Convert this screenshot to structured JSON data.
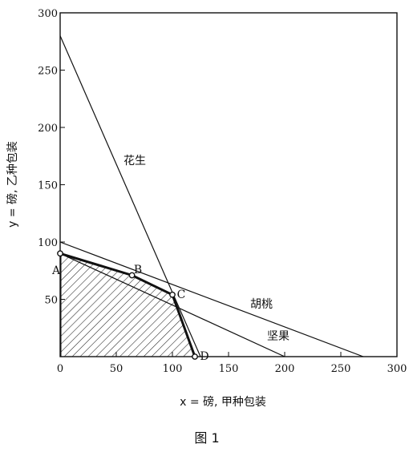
{
  "chart_data": {
    "type": "line",
    "title": "",
    "caption": "图 1",
    "xlabel": "x = 磅, 甲种包装",
    "ylabel": "y = 磅, 乙种包装",
    "xlim": [
      0,
      300
    ],
    "ylim": [
      0,
      300
    ],
    "xticks": [
      0,
      50,
      100,
      150,
      200,
      250,
      300
    ],
    "yticks": [
      50,
      100,
      150,
      200,
      250,
      300
    ],
    "grid": false,
    "series": [
      {
        "name": "花生",
        "x": [
          0,
          100
        ],
        "y": [
          280,
          56
        ],
        "extend_to": [
          125,
          0
        ]
      },
      {
        "name": "胡桃",
        "x": [
          0,
          270
        ],
        "y": [
          100,
          0
        ]
      },
      {
        "name": "坚果",
        "x": [
          0,
          200
        ],
        "y": [
          90,
          0
        ]
      }
    ],
    "feasible_region": {
      "vertices": [
        {
          "label": "A",
          "x": 0,
          "y": 90
        },
        {
          "label": "B",
          "x": 64,
          "y": 71
        },
        {
          "label": "C",
          "x": 100,
          "y": 54
        },
        {
          "label": "D",
          "x": 120,
          "y": 0
        }
      ],
      "fill": "hatched"
    }
  },
  "labels": {
    "origin_tick": "0"
  }
}
